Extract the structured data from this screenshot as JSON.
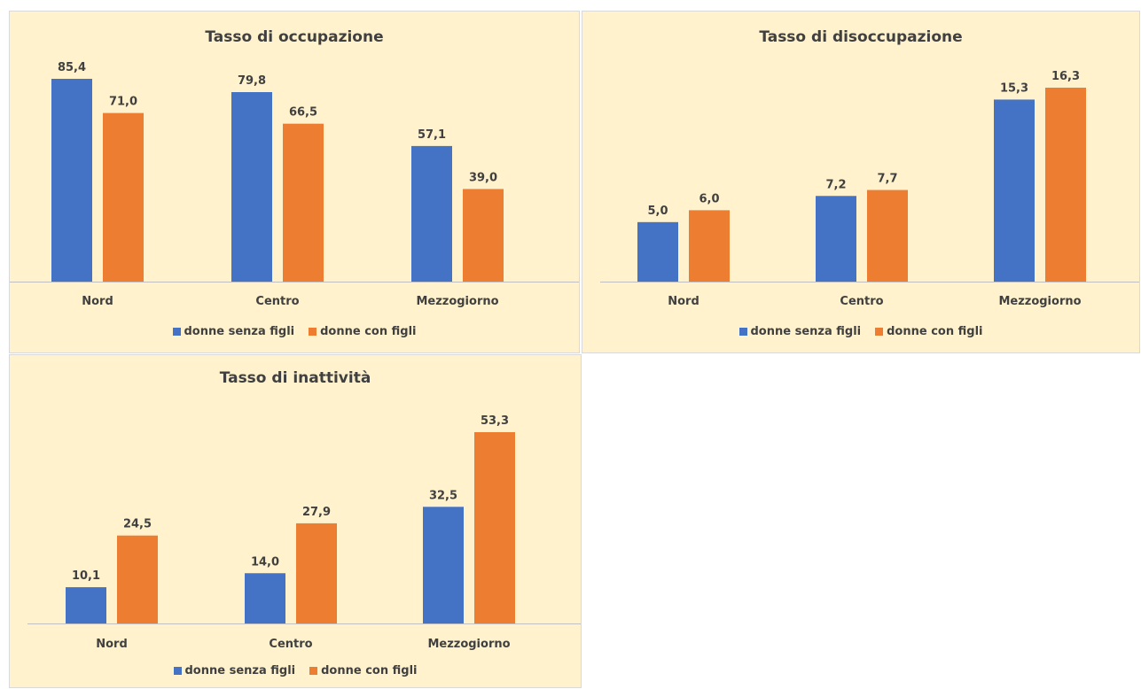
{
  "colors": {
    "panel_bg": "#FFF2CC",
    "series_blue": "#4472C4",
    "series_orange": "#ED7D31",
    "axis": "#bfbfbf",
    "text": "#404040"
  },
  "chart_data": [
    {
      "type": "bar",
      "title": "Tasso di occupazione",
      "categories": [
        "Nord",
        "Centro",
        "Mezzogiorno"
      ],
      "series": [
        {
          "name": "donne senza figli",
          "values": [
            85.4,
            79.8,
            57.1
          ],
          "labels": [
            "85,4",
            "79,8",
            "57,1"
          ]
        },
        {
          "name": "donne con figli",
          "values": [
            71.0,
            66.5,
            39.0
          ],
          "labels": [
            "71,0",
            "66,5",
            "39,0"
          ]
        }
      ],
      "ylim": [
        0,
        85.4
      ],
      "grid": false,
      "legend": "bottom"
    },
    {
      "type": "bar",
      "title": "Tasso di disoccupazione",
      "categories": [
        "Nord",
        "Centro",
        "Mezzogiorno"
      ],
      "series": [
        {
          "name": "donne senza figli",
          "values": [
            5.0,
            7.2,
            15.3
          ],
          "labels": [
            "5,0",
            "7,2",
            "15,3"
          ]
        },
        {
          "name": "donne con figli",
          "values": [
            6.0,
            7.7,
            16.3
          ],
          "labels": [
            "6,0",
            "7,7",
            "16,3"
          ]
        }
      ],
      "ylim": [
        0,
        16.3
      ],
      "grid": false,
      "legend": "bottom"
    },
    {
      "type": "bar",
      "title": "Tasso di inattività",
      "categories": [
        "Nord",
        "Centro",
        "Mezzogiorno"
      ],
      "series": [
        {
          "name": "donne senza figli",
          "values": [
            10.1,
            14.0,
            32.5
          ],
          "labels": [
            "10,1",
            "14,0",
            "32,5"
          ]
        },
        {
          "name": "donne con figli",
          "values": [
            24.5,
            27.9,
            53.3
          ],
          "labels": [
            "24,5",
            "27,9",
            "53,3"
          ]
        }
      ],
      "ylim": [
        0,
        53.3
      ],
      "grid": false,
      "legend": "bottom"
    }
  ]
}
